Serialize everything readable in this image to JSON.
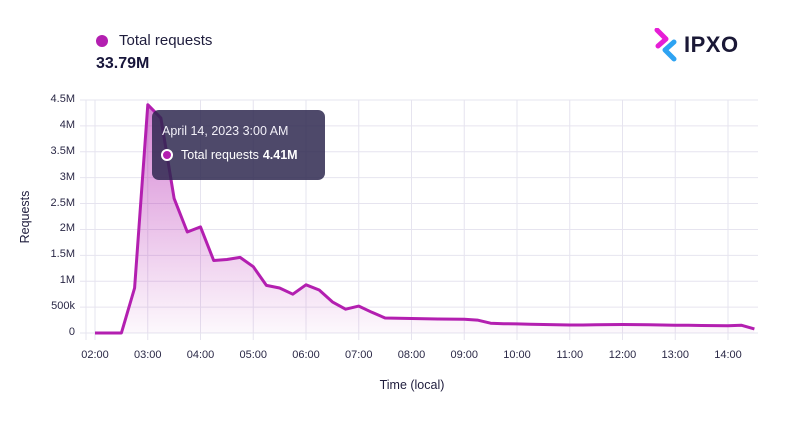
{
  "header": {
    "legend_label": "Total requests",
    "legend_color": "#b31fb0",
    "total_value": "33.79M"
  },
  "logo": {
    "text": "IPXO",
    "icon": "ipxo-chevrons-icon",
    "colors": [
      "#e61ed6",
      "#2ea3f2"
    ]
  },
  "tooltip": {
    "date": "April 14, 2023 3:00 AM",
    "series_label": "Total requests",
    "value": "4.41M"
  },
  "chart_data": {
    "type": "area",
    "title": "",
    "xlabel": "Time (local)",
    "ylabel": "Requests",
    "ylim": [
      0,
      4500000
    ],
    "grid": true,
    "legend_position": "top-left",
    "y_ticks": [
      "0",
      "500k",
      "1M",
      "1.5M",
      "2M",
      "2.5M",
      "3M",
      "3.5M",
      "4M",
      "4.5M"
    ],
    "x_ticks": [
      "02:00",
      "03:00",
      "04:00",
      "05:00",
      "06:00",
      "07:00",
      "08:00",
      "09:00",
      "10:00",
      "11:00",
      "12:00",
      "13:00",
      "14:00"
    ],
    "series": [
      {
        "name": "Total requests",
        "color": "#b31fb0",
        "x": [
          "02:00",
          "02:15",
          "02:30",
          "02:45",
          "03:00",
          "03:15",
          "03:30",
          "03:45",
          "04:00",
          "04:15",
          "04:30",
          "04:45",
          "05:00",
          "05:15",
          "05:30",
          "05:45",
          "06:00",
          "06:15",
          "06:30",
          "06:45",
          "07:00",
          "07:15",
          "07:30",
          "07:45",
          "08:00",
          "08:15",
          "08:30",
          "08:45",
          "09:00",
          "09:15",
          "09:30",
          "09:45",
          "10:00",
          "10:15",
          "10:30",
          "10:45",
          "11:00",
          "11:15",
          "11:30",
          "11:45",
          "12:00",
          "12:15",
          "12:30",
          "12:45",
          "13:00",
          "13:15",
          "13:30",
          "13:45",
          "14:00",
          "14:15",
          "14:30"
        ],
        "values": [
          0,
          0,
          0,
          870000,
          4410000,
          4150000,
          2600000,
          1950000,
          2050000,
          1400000,
          1420000,
          1460000,
          1280000,
          920000,
          870000,
          750000,
          930000,
          830000,
          600000,
          460000,
          520000,
          400000,
          290000,
          285000,
          280000,
          275000,
          270000,
          268000,
          265000,
          250000,
          190000,
          180000,
          175000,
          170000,
          165000,
          160000,
          155000,
          155000,
          160000,
          162000,
          165000,
          162000,
          158000,
          155000,
          150000,
          148000,
          145000,
          142000,
          140000,
          150000,
          80000
        ]
      }
    ],
    "tooltip_point": {
      "x": "03:00",
      "value": 4410000
    }
  }
}
